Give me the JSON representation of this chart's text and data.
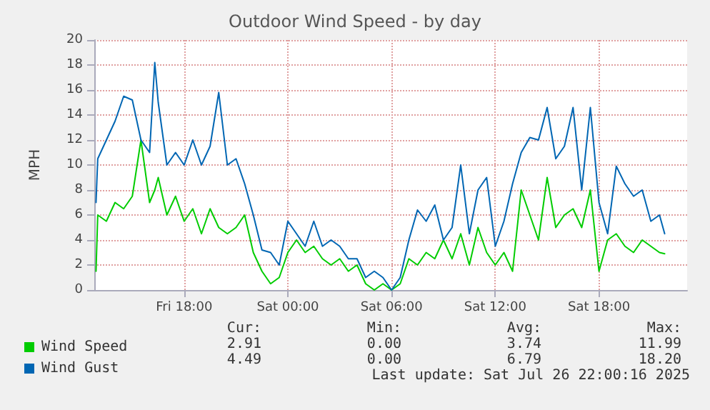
{
  "chart_data": {
    "type": "line",
    "title": "Outdoor Wind Speed - by day",
    "ylabel": "MPH",
    "x": [
      "2025-07-25T12:54",
      "2025-07-25T13:00",
      "2025-07-25T13:30",
      "2025-07-25T14:00",
      "2025-07-25T14:30",
      "2025-07-25T15:00",
      "2025-07-25T15:30",
      "2025-07-25T16:00",
      "2025-07-25T16:18",
      "2025-07-25T16:30",
      "2025-07-25T17:00",
      "2025-07-25T17:30",
      "2025-07-25T18:00",
      "2025-07-25T18:30",
      "2025-07-25T19:00",
      "2025-07-25T19:30",
      "2025-07-25T20:00",
      "2025-07-25T20:30",
      "2025-07-25T21:00",
      "2025-07-25T21:30",
      "2025-07-25T22:00",
      "2025-07-25T22:30",
      "2025-07-25T23:00",
      "2025-07-25T23:30",
      "2025-07-26T00:00",
      "2025-07-26T00:30",
      "2025-07-26T01:00",
      "2025-07-26T01:30",
      "2025-07-26T02:00",
      "2025-07-26T02:30",
      "2025-07-26T03:00",
      "2025-07-26T03:30",
      "2025-07-26T04:00",
      "2025-07-26T04:30",
      "2025-07-26T05:00",
      "2025-07-26T05:30",
      "2025-07-26T06:00",
      "2025-07-26T06:30",
      "2025-07-26T07:00",
      "2025-07-26T07:30",
      "2025-07-26T08:00",
      "2025-07-26T08:30",
      "2025-07-26T09:00",
      "2025-07-26T09:30",
      "2025-07-26T10:00",
      "2025-07-26T10:30",
      "2025-07-26T11:00",
      "2025-07-26T11:30",
      "2025-07-26T12:00",
      "2025-07-26T12:30",
      "2025-07-26T13:00",
      "2025-07-26T13:30",
      "2025-07-26T14:00",
      "2025-07-26T14:30",
      "2025-07-26T15:00",
      "2025-07-26T15:30",
      "2025-07-26T16:00",
      "2025-07-26T16:30",
      "2025-07-26T17:00",
      "2025-07-26T17:30",
      "2025-07-26T18:00",
      "2025-07-26T18:30",
      "2025-07-26T19:00",
      "2025-07-26T19:30",
      "2025-07-26T20:00",
      "2025-07-26T20:30",
      "2025-07-26T21:00",
      "2025-07-26T21:30",
      "2025-07-26T21:48"
    ],
    "series": [
      {
        "name": "Wind Speed",
        "color": "#00cc00",
        "values": [
          1.5,
          6,
          5.5,
          7,
          6.5,
          7.5,
          12,
          7,
          8,
          9,
          6,
          7.5,
          5.5,
          6.5,
          4.5,
          6.5,
          5,
          4.5,
          5,
          6,
          3,
          1.5,
          0.5,
          1,
          3,
          4,
          3,
          3.5,
          2.5,
          2,
          2.5,
          1.5,
          2,
          0.5,
          0,
          0.5,
          0,
          0.5,
          2.5,
          2,
          3,
          2.5,
          4,
          2.5,
          4.5,
          2,
          5,
          3,
          2,
          3,
          1.5,
          8,
          6,
          4,
          9,
          5,
          6,
          6.5,
          5,
          8,
          1.5,
          4,
          4.5,
          3.5,
          3,
          4,
          3.5,
          3,
          2.9
        ]
      },
      {
        "name": "Wind Gust",
        "color": "#0066b3",
        "values": [
          7,
          10.5,
          12,
          13.5,
          15.5,
          15.2,
          12,
          11,
          18.2,
          15,
          10,
          11,
          10,
          12,
          10,
          11.5,
          15.8,
          10,
          10.5,
          8.5,
          6,
          3.2,
          3,
          2,
          5.5,
          4.5,
          3.5,
          5.5,
          3.5,
          4,
          3.5,
          2.5,
          2.5,
          1,
          1.5,
          1,
          0,
          1,
          4,
          6.4,
          5.5,
          6.8,
          4,
          5,
          10,
          4.5,
          8,
          9,
          3.5,
          5.5,
          8.5,
          11,
          12.2,
          12,
          14.6,
          10.5,
          11.5,
          14.6,
          8,
          14.6,
          7,
          4.5,
          9.9,
          8.5,
          7.5,
          8,
          5.5,
          6,
          4.5
        ]
      }
    ],
    "xlim": [
      "2025-07-25T12:48",
      "2025-07-26T23:06"
    ],
    "xticks": [
      {
        "value": "2025-07-25T18:00",
        "label": "Fri 18:00"
      },
      {
        "value": "2025-07-26T00:00",
        "label": "Sat 00:00"
      },
      {
        "value": "2025-07-26T06:00",
        "label": "Sat 06:00"
      },
      {
        "value": "2025-07-26T12:00",
        "label": "Sat 12:00"
      },
      {
        "value": "2025-07-26T18:00",
        "label": "Sat 18:00"
      }
    ],
    "ylim": [
      0,
      20
    ],
    "yticks": [
      0,
      2,
      4,
      6,
      8,
      10,
      12,
      14,
      16,
      18,
      20
    ],
    "grid": true,
    "legend": "bottom left",
    "marker": "none",
    "line_style": "solid",
    "annotations": [
      "Cur:",
      "Min:",
      "Avg:",
      "Max:",
      "2.91",
      "0.00",
      "3.74",
      "11.99",
      "4.49",
      "0.00",
      "6.79",
      "18.20",
      "Last update: Sat Jul 26 22:00:16 2025"
    ]
  }
}
